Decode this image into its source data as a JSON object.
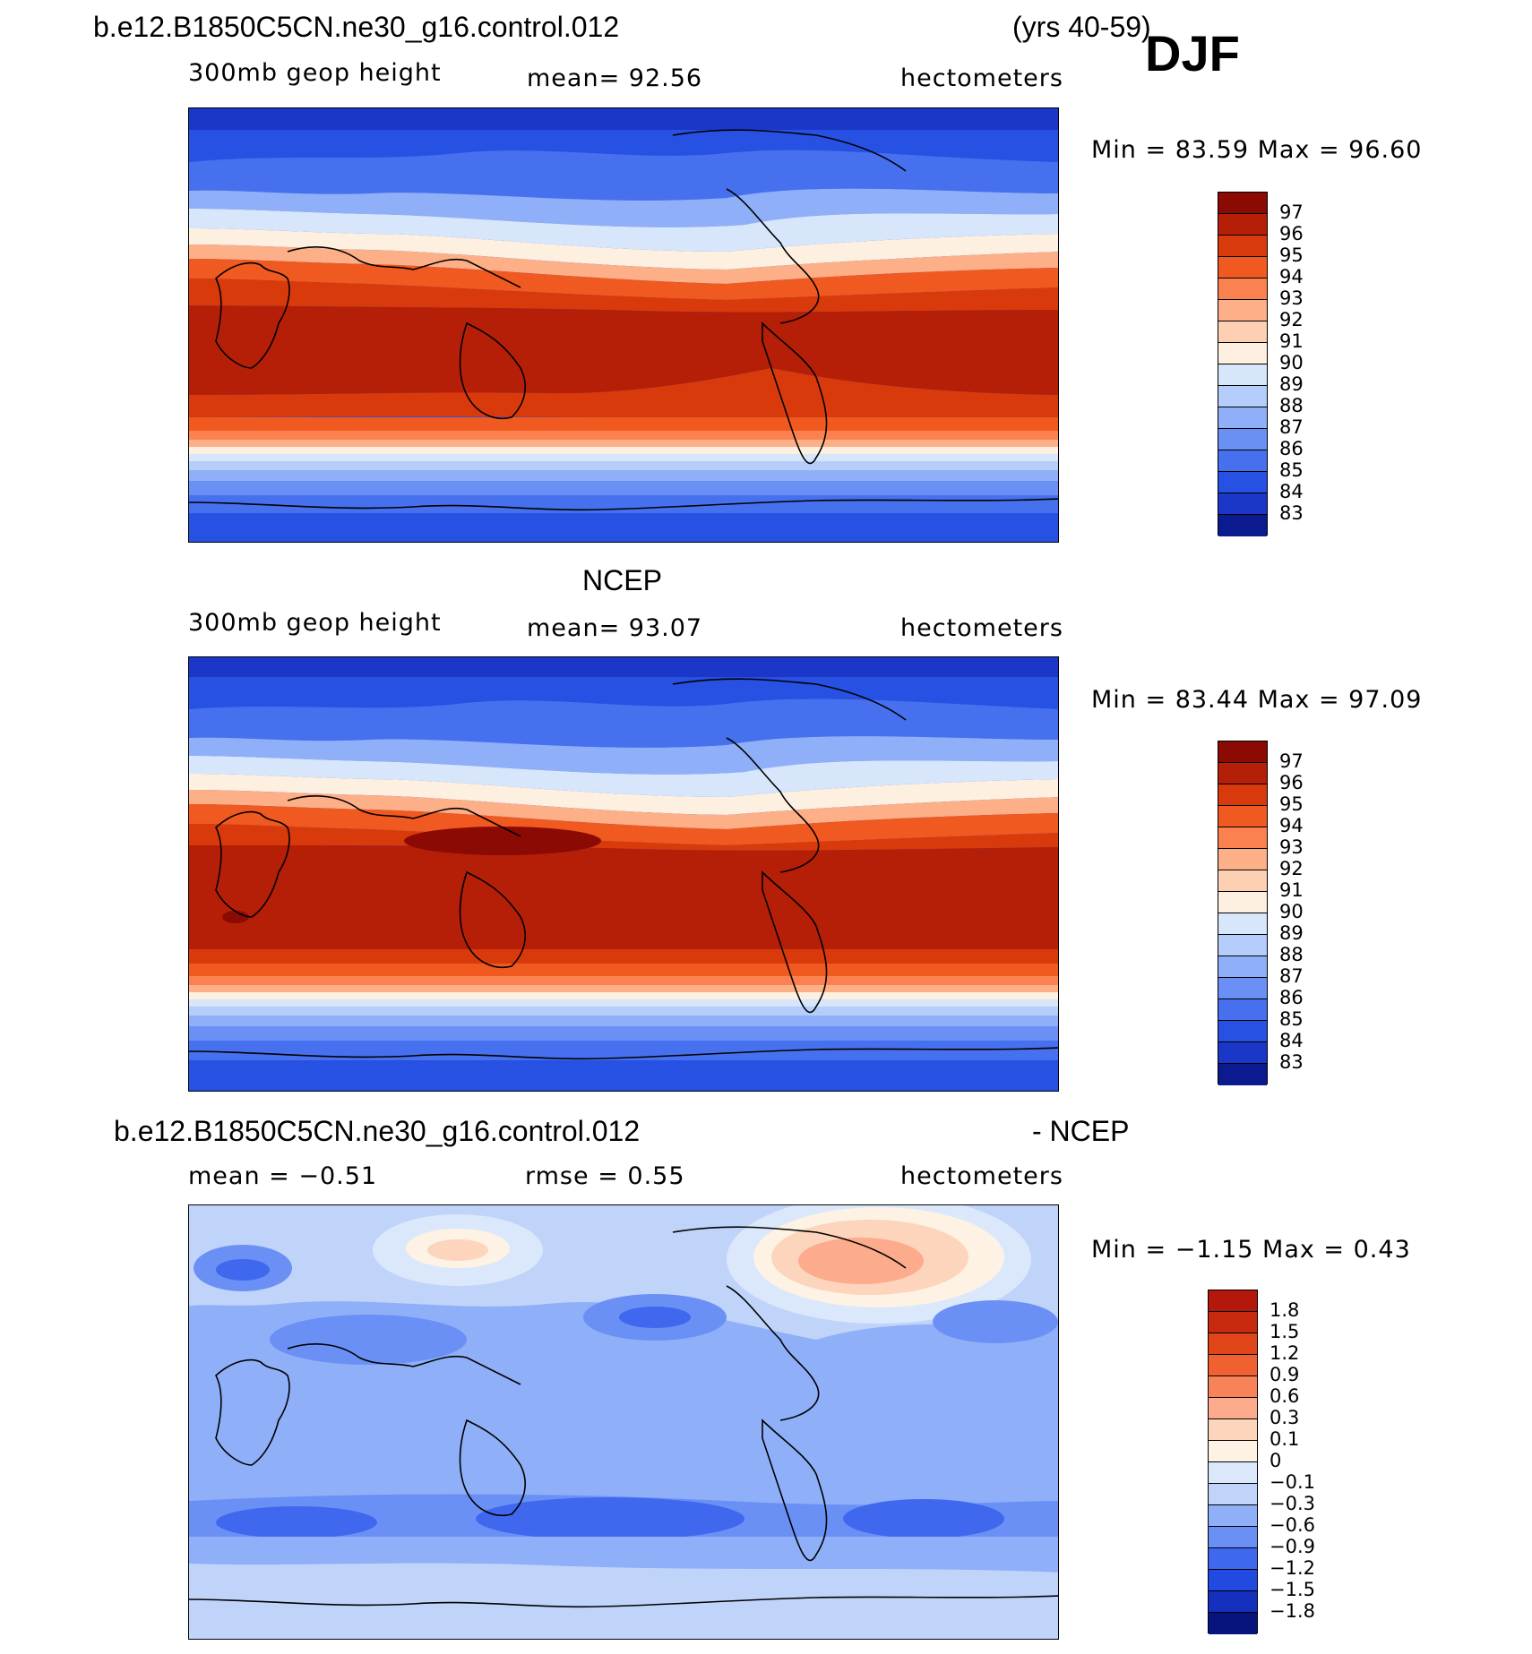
{
  "season": "DJF",
  "panels": [
    {
      "title_left": "b.e12.B1850C5CN.ne30_g16.control.012",
      "title_right": "(yrs 40-59)",
      "field_label": "300mb geop height",
      "stat1": "mean=   92.56",
      "stat2": "",
      "units": "hectometers",
      "minmax": "Min =   83.59  Max =   96.60",
      "colorbar": {
        "labels": [
          "97",
          "96",
          "95",
          "94",
          "93",
          "92",
          "91",
          "90",
          "89",
          "88",
          "87",
          "86",
          "85",
          "84",
          "83"
        ],
        "colors": [
          "#8b0a04",
          "#b51f08",
          "#d83a0c",
          "#f0591f",
          "#fb8250",
          "#fdaf88",
          "#fdd0b4",
          "#fdf0e0",
          "#d7e6fb",
          "#b5cdfa",
          "#8fb0f8",
          "#6b90f5",
          "#4670ee",
          "#2651e3",
          "#1a37c8",
          "#0b1a8e"
        ],
        "min": 83.59,
        "max": 96.6
      }
    },
    {
      "title_center": "NCEP",
      "field_label": "300mb geop height",
      "stat1": "mean=   93.07",
      "stat2": "",
      "units": "hectometers",
      "minmax": "Min =   83.44  Max =   97.09",
      "colorbar": {
        "labels": [
          "97",
          "96",
          "95",
          "94",
          "93",
          "92",
          "91",
          "90",
          "89",
          "88",
          "87",
          "86",
          "85",
          "84",
          "83"
        ],
        "colors": [
          "#8b0a04",
          "#b51f08",
          "#d83a0c",
          "#f0591f",
          "#fb8250",
          "#fdaf88",
          "#fdd0b4",
          "#fdf0e0",
          "#d7e6fb",
          "#b5cdfa",
          "#8fb0f8",
          "#6b90f5",
          "#4670ee",
          "#2651e3",
          "#1a37c8",
          "#0b1a8e"
        ],
        "min": 83.44,
        "max": 97.09
      }
    },
    {
      "title_left": "b.e12.B1850C5CN.ne30_g16.control.012",
      "title_right": "- NCEP",
      "field_label": "",
      "stat1": "mean =   −0.51",
      "stat2": "rmse =     0.55",
      "units": "hectometers",
      "minmax": "Min =   −1.15  Max =     0.43",
      "colorbar": {
        "labels": [
          "1.8",
          "1.5",
          "1.2",
          "0.9",
          "0.6",
          "0.3",
          "0.1",
          "0",
          "−0.1",
          "−0.3",
          "−0.6",
          "−0.9",
          "−1.2",
          "−1.5",
          "−1.8"
        ],
        "colors": [
          "#b4180c",
          "#c82a10",
          "#e0451a",
          "#f06030",
          "#f88358",
          "#fcac8c",
          "#fdd4bc",
          "#fdf2e4",
          "#dbe8fc",
          "#c0d4fa",
          "#8fb0f8",
          "#6b90f5",
          "#3f68ee",
          "#2249e0",
          "#1430bc",
          "#08147e"
        ],
        "min": -1.15,
        "max": 0.43
      }
    }
  ]
}
